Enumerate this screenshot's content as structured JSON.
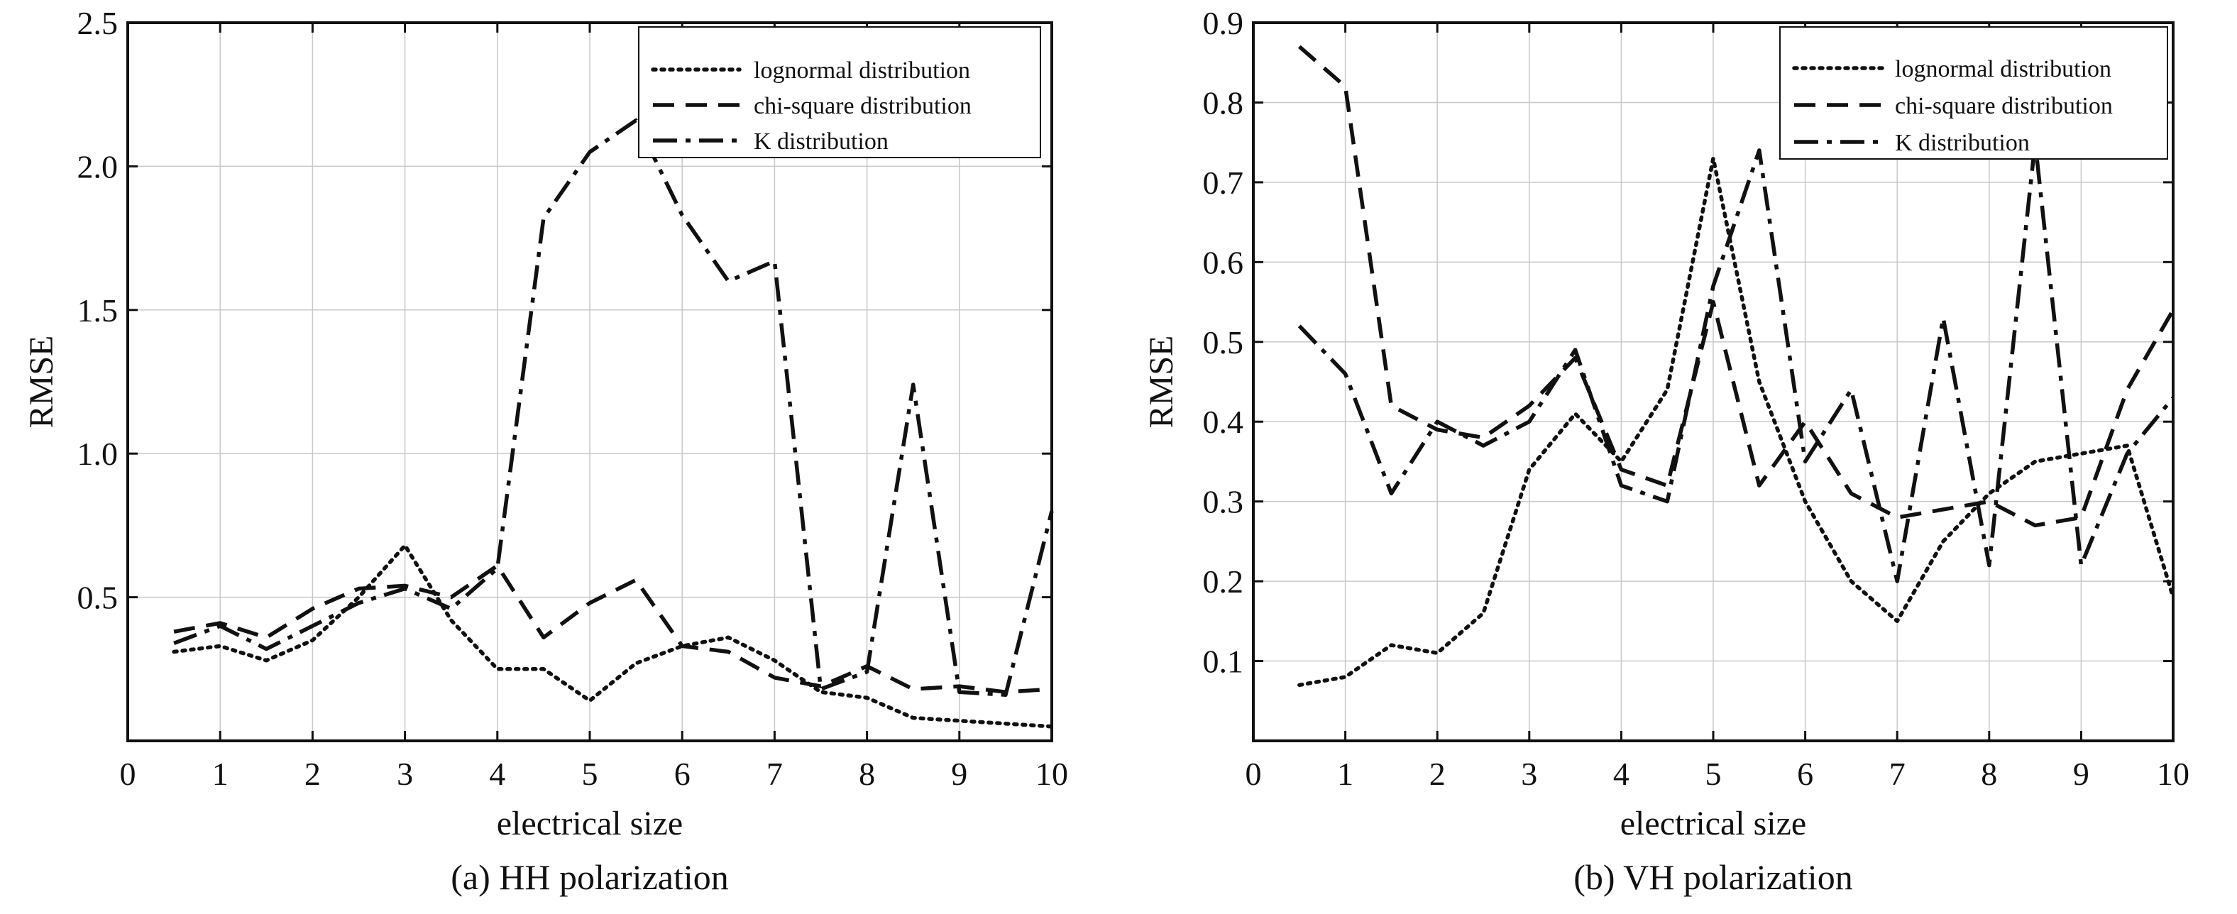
{
  "colors": {
    "ink": "#111111",
    "grid": "#c8c8c8",
    "background": "#ffffff"
  },
  "chart_data": [
    {
      "type": "line",
      "caption": "(a) HH polarization",
      "xlabel": "electrical size",
      "ylabel": "RMSE",
      "xlim": [
        0,
        10
      ],
      "ylim": [
        0,
        2.5
      ],
      "xticks": [
        "0",
        "1",
        "2",
        "3",
        "4",
        "5",
        "6",
        "7",
        "8",
        "9",
        "10"
      ],
      "yticks": [
        "0.5",
        "1.0",
        "1.5",
        "2.0",
        "2.5"
      ],
      "grid": true,
      "legend_position": "top-right",
      "series": [
        {
          "name": "lognormal distribution",
          "dash": "dotted",
          "x": [
            0.5,
            1,
            1.5,
            2,
            2.5,
            3,
            3.5,
            4,
            4.5,
            5,
            5.5,
            6,
            6.5,
            7,
            7.5,
            8,
            8.5,
            9,
            9.5,
            10
          ],
          "y": [
            0.31,
            0.33,
            0.28,
            0.35,
            0.5,
            0.68,
            0.42,
            0.25,
            0.25,
            0.14,
            0.27,
            0.33,
            0.36,
            0.28,
            0.17,
            0.15,
            0.08,
            0.07,
            0.06,
            0.05
          ]
        },
        {
          "name": "chi-square distribution",
          "dash": "dashed",
          "x": [
            0.5,
            1,
            1.5,
            2,
            2.5,
            3,
            3.5,
            4,
            4.5,
            5,
            5.5,
            6,
            6.5,
            7,
            7.5,
            8,
            8.5,
            9,
            9.5,
            10
          ],
          "y": [
            0.38,
            0.41,
            0.36,
            0.46,
            0.53,
            0.54,
            0.5,
            0.61,
            0.36,
            0.48,
            0.56,
            0.33,
            0.31,
            0.22,
            0.19,
            0.26,
            0.18,
            0.19,
            0.17,
            0.18
          ]
        },
        {
          "name": "K distribution",
          "dash": "dashdot",
          "x": [
            0.5,
            1,
            1.5,
            2,
            2.5,
            3,
            3.5,
            4,
            4.5,
            5,
            5.5,
            6,
            6.5,
            7,
            7.5,
            8,
            8.5,
            9,
            9.5,
            10
          ],
          "y": [
            0.34,
            0.4,
            0.32,
            0.4,
            0.48,
            0.53,
            0.46,
            0.6,
            1.82,
            2.05,
            2.16,
            1.83,
            1.6,
            1.67,
            0.18,
            0.24,
            1.24,
            0.17,
            0.16,
            0.8
          ]
        }
      ]
    },
    {
      "type": "line",
      "caption": "(b) VH polarization",
      "xlabel": "electrical size",
      "ylabel": "RMSE",
      "xlim": [
        0,
        10
      ],
      "ylim": [
        0,
        0.9
      ],
      "xticks": [
        "0",
        "1",
        "2",
        "3",
        "4",
        "5",
        "6",
        "7",
        "8",
        "9",
        "10"
      ],
      "yticks": [
        "0.1",
        "0.2",
        "0.3",
        "0.4",
        "0.5",
        "0.6",
        "0.7",
        "0.8",
        "0.9"
      ],
      "grid": true,
      "legend_position": "top-right",
      "series": [
        {
          "name": "lognormal distribution",
          "dash": "dotted",
          "x": [
            0.5,
            1,
            1.5,
            2,
            2.5,
            3,
            3.5,
            4,
            4.5,
            5,
            5.5,
            6,
            6.5,
            7,
            7.5,
            8,
            8.5,
            9,
            9.5,
            10
          ],
          "y": [
            0.07,
            0.08,
            0.12,
            0.11,
            0.16,
            0.34,
            0.41,
            0.35,
            0.44,
            0.73,
            0.45,
            0.3,
            0.2,
            0.15,
            0.25,
            0.31,
            0.35,
            0.36,
            0.37,
            0.18
          ]
        },
        {
          "name": "chi-square distribution",
          "dash": "dashed",
          "x": [
            0.5,
            1,
            1.5,
            2,
            2.5,
            3,
            3.5,
            4,
            4.5,
            5,
            5.5,
            6,
            6.5,
            7,
            7.5,
            8,
            8.5,
            9,
            9.5,
            10
          ],
          "y": [
            0.87,
            0.82,
            0.42,
            0.39,
            0.38,
            0.42,
            0.48,
            0.34,
            0.32,
            0.55,
            0.32,
            0.4,
            0.31,
            0.28,
            0.29,
            0.3,
            0.27,
            0.28,
            0.44,
            0.54
          ]
        },
        {
          "name": "K distribution",
          "dash": "dashdot",
          "x": [
            0.5,
            1,
            1.5,
            2,
            2.5,
            3,
            3.5,
            4,
            4.5,
            5,
            5.5,
            6,
            6.5,
            7,
            7.5,
            8,
            8.5,
            9,
            9.5,
            10
          ],
          "y": [
            0.52,
            0.46,
            0.31,
            0.4,
            0.37,
            0.4,
            0.49,
            0.32,
            0.3,
            0.57,
            0.74,
            0.35,
            0.44,
            0.2,
            0.53,
            0.22,
            0.75,
            0.22,
            0.36,
            0.43
          ]
        }
      ]
    }
  ]
}
